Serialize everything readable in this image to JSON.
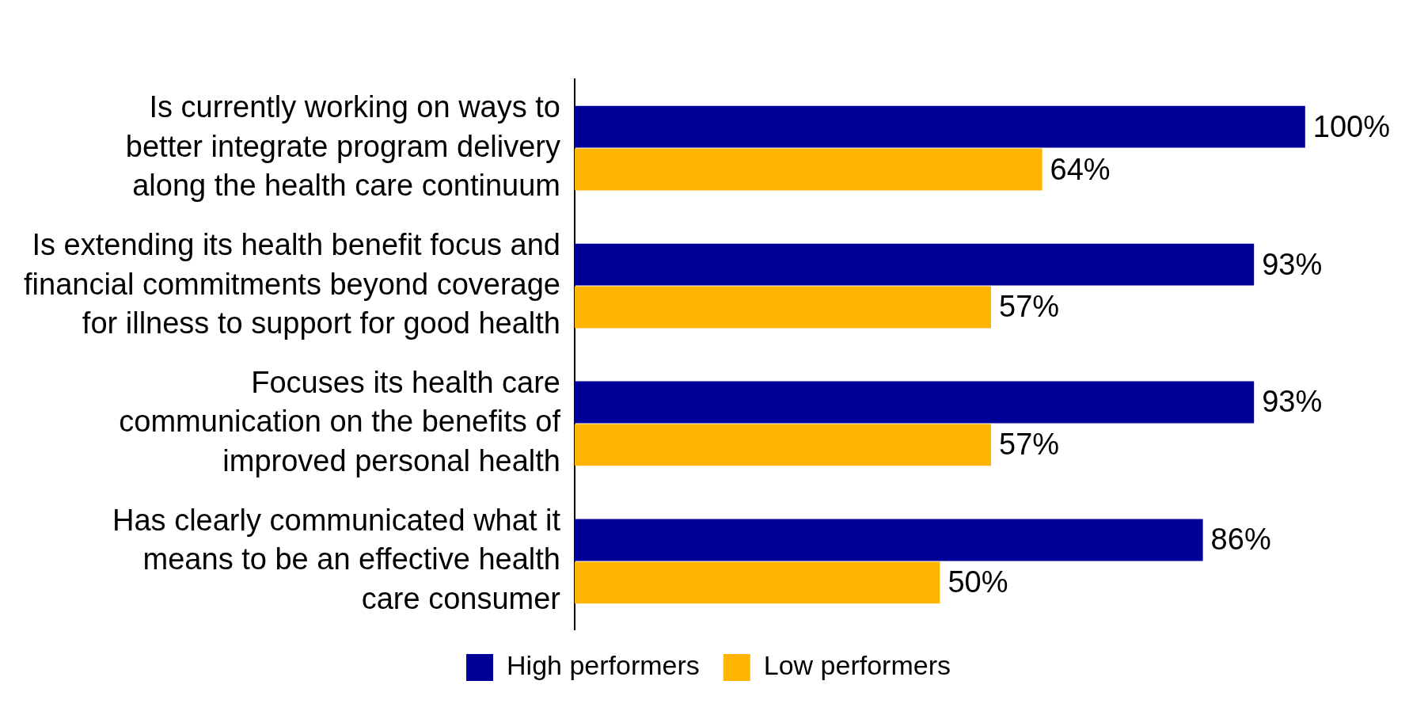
{
  "chart_data": {
    "type": "bar",
    "orientation": "horizontal",
    "categories": [
      "Is currently working on ways to\nbetter integrate program delivery\nalong the health care continuum",
      "Is extending its health benefit focus and\nfinancial commitments beyond coverage\nfor illness to support for good health",
      "Focuses its health care\ncommunication on the benefits of\nimproved personal health",
      "Has clearly communicated what it\nmeans to be an effective health\ncare consumer"
    ],
    "series": [
      {
        "name": "High performers",
        "color": "#000099",
        "values": [
          100,
          93,
          93,
          86
        ],
        "value_labels": [
          "100%",
          "93%",
          "93%",
          "86%"
        ]
      },
      {
        "name": "Low performers",
        "color": "#ffb400",
        "values": [
          64,
          57,
          57,
          50
        ],
        "value_labels": [
          "64%",
          "57%",
          "57%",
          "50%"
        ]
      }
    ],
    "legend": "bottom"
  }
}
